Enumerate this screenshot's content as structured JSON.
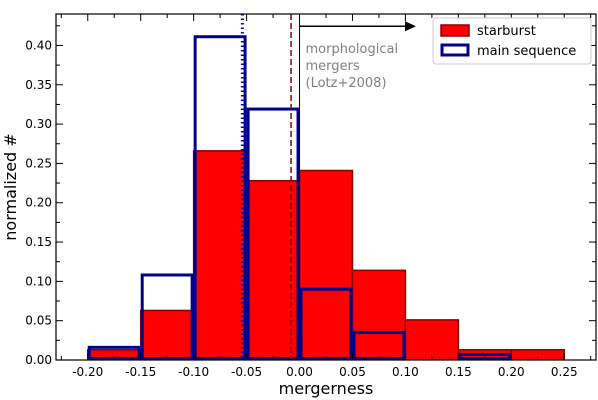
{
  "chart_data": {
    "type": "bar",
    "xlabel": "mergerness",
    "ylabel": "normalized #",
    "xlim": [
      -0.23,
      0.28
    ],
    "ylim": [
      0.0,
      0.44
    ],
    "x_ticks": [
      "-0.20",
      "-0.15",
      "-0.10",
      "-0.05",
      "0.00",
      "0.05",
      "0.10",
      "0.15",
      "0.20",
      "0.25"
    ],
    "y_ticks": [
      "0.00",
      "0.05",
      "0.10",
      "0.15",
      "0.20",
      "0.25",
      "0.30",
      "0.35",
      "0.40"
    ],
    "bin_edges": [
      -0.25,
      -0.2,
      -0.15,
      -0.1,
      -0.05,
      0.0,
      0.05,
      0.1,
      0.15,
      0.2,
      0.25
    ],
    "series": [
      {
        "name": "starburst",
        "style": "filled",
        "fill": "#ff0000",
        "edge": "#8b0000",
        "values": [
          0.0,
          0.013,
          0.063,
          0.266,
          0.228,
          0.241,
          0.114,
          0.051,
          0.013,
          0.013
        ]
      },
      {
        "name": "main sequence",
        "style": "step",
        "edge": "#00008b",
        "values": [
          0.0,
          0.018,
          0.11,
          0.413,
          0.321,
          0.092,
          0.037,
          0.0,
          0.009,
          0.0
        ]
      }
    ],
    "vlines": [
      {
        "x": -0.054,
        "color": "#0000cd",
        "style": "dotted"
      },
      {
        "x": -0.008,
        "color": "#8b0000",
        "style": "dashed"
      },
      {
        "x": 0.0,
        "color": "#000000",
        "style": "solid"
      }
    ],
    "annotation": {
      "lines": [
        "morphological",
        "mergers",
        "(Lotz+2008)"
      ],
      "color": "#808080",
      "arrow_from": 0.0,
      "arrow_to": 0.11,
      "arrow_y": 0.413
    },
    "legend_position": "top-right",
    "grid": false
  }
}
